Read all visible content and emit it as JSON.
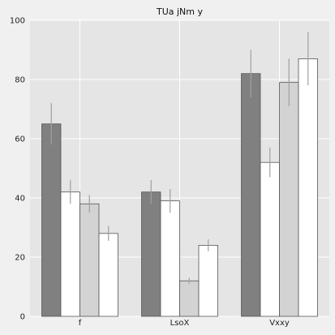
{
  "chart_data": {
    "type": "bar",
    "title": "TUa jNm y",
    "xlabel": "",
    "ylabel": "",
    "categories": [
      "f",
      "LsoX",
      "Vxxy"
    ],
    "ylim": [
      0,
      100
    ],
    "yticks": [
      0,
      20,
      40,
      60,
      80,
      100
    ],
    "grid": true,
    "legend": "none",
    "series": [
      {
        "values": [
          65,
          42,
          82
        ],
        "errors": [
          7,
          4,
          8
        ],
        "color": "#808080"
      },
      {
        "values": [
          42,
          39,
          52
        ],
        "errors": [
          4,
          4,
          5
        ],
        "color": "#ffffff"
      },
      {
        "values": [
          38,
          12,
          79
        ],
        "errors": [
          3,
          1,
          8
        ],
        "color": "#d3d3d3"
      },
      {
        "values": [
          28,
          24,
          87
        ],
        "errors": [
          2.5,
          2,
          9
        ],
        "color": "#ffffff"
      }
    ],
    "colors": {
      "plot_background": "#e5e5e5",
      "figure_background": "#f0f0f0",
      "grid": "#ffffff",
      "error_bar": "#a0a0a0",
      "bar_edge": "#555555"
    }
  }
}
